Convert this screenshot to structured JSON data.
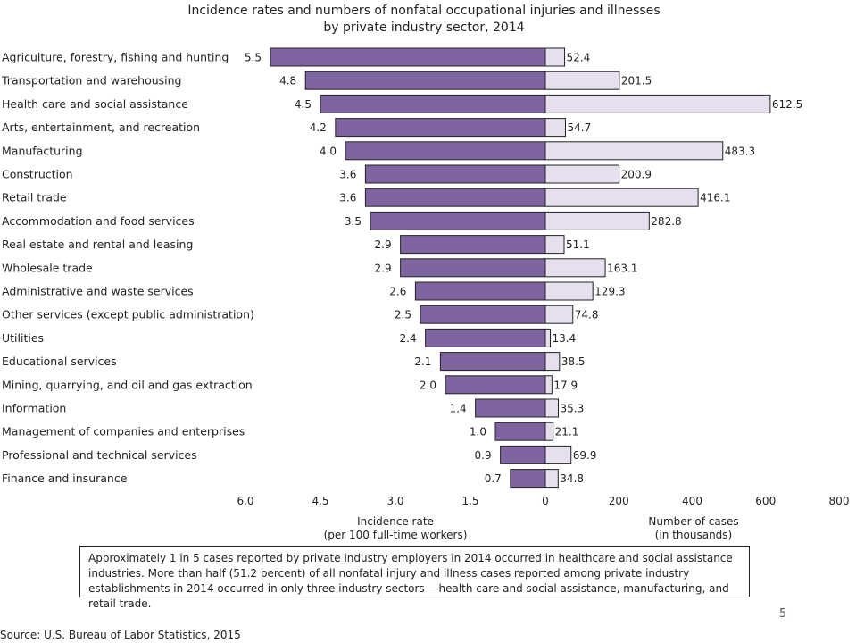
{
  "title_lines": [
    "Incidence rates and numbers of nonfatal occupational injuries and illnesses",
    "by private industry sector, 2014"
  ],
  "colors": {
    "rate_bar": "#7E65A0",
    "cases_bar": "#E6E0EE",
    "bar_stroke": "#222222"
  },
  "chart_data": {
    "type": "bar",
    "orientation": "horizontal",
    "layout": "back-to-back",
    "title": "Incidence rates and numbers of nonfatal occupational injuries and illnesses by private industry sector, 2014",
    "categories": [
      "Agriculture, forestry, fishing and hunting",
      "Transportation and warehousing",
      "Health care and social assistance",
      "Arts, entertainment, and recreation",
      "Manufacturing",
      "Construction",
      "Retail trade",
      "Accommodation and food services",
      "Real estate and rental and leasing",
      "Wholesale trade",
      "Administrative and waste services",
      "Other services (except public administration)",
      "Utilities",
      "Educational services",
      "Mining, quarrying, and oil and gas extraction",
      "Information",
      "Management of companies and enterprises",
      "Professional and technical services",
      "Finance and insurance"
    ],
    "series": [
      {
        "name": "Incidence rate (per 100 full-time workers)",
        "values": [
          5.5,
          4.8,
          4.5,
          4.2,
          4.0,
          3.6,
          3.6,
          3.5,
          2.9,
          2.9,
          2.6,
          2.5,
          2.4,
          2.1,
          2.0,
          1.4,
          1.0,
          0.9,
          0.7
        ],
        "labels": [
          "5.5",
          "4.8",
          "4.5",
          "4.2",
          "4.0",
          "3.6",
          "3.6",
          "3.5",
          "2.9",
          "2.9",
          "2.6",
          "2.5",
          "2.4",
          "2.1",
          "2.0",
          "1.4",
          "1.0",
          "0.9",
          "0.7"
        ],
        "xlim": [
          0,
          6.0
        ],
        "direction": "left",
        "ticks": [
          "6.0",
          "4.5",
          "3.0",
          "1.5",
          "0"
        ],
        "xlabel_lines": [
          "Incidence rate",
          "(per 100 full-time workers)"
        ]
      },
      {
        "name": "Number of cases (in thousands)",
        "values": [
          52.4,
          201.5,
          612.5,
          54.7,
          483.3,
          200.9,
          416.1,
          282.8,
          51.1,
          163.1,
          129.3,
          74.8,
          13.4,
          38.5,
          17.9,
          35.3,
          21.1,
          69.9,
          34.8
        ],
        "labels": [
          "52.4",
          "201.5",
          "612.5",
          "54.7",
          "483.3",
          "200.9",
          "416.1",
          "282.8",
          "51.1",
          "163.1",
          "129.3",
          "74.8",
          "13.4",
          "38.5",
          "17.9",
          "35.3",
          "21.1",
          "69.9",
          "34.8"
        ],
        "xlim": [
          0,
          800
        ],
        "direction": "right",
        "ticks": [
          "200",
          "400",
          "600",
          "800"
        ],
        "xlabel_lines": [
          "Number of cases",
          "(in thousands)"
        ]
      }
    ],
    "grid": false,
    "legend": "none"
  },
  "note": "Approximately 1 in 5 cases reported by private industry employers in 2014 occurred in healthcare and social assistance industries. More than half (51.2 percent) of all nonfatal injury and illness cases reported among private industry establishments in 2014 occurred in only three industry sectors —health care and social assistance, manufacturing, and retail trade.",
  "page_number": "5",
  "source": "Source: U.S. Bureau of Labor Statistics, 2015"
}
